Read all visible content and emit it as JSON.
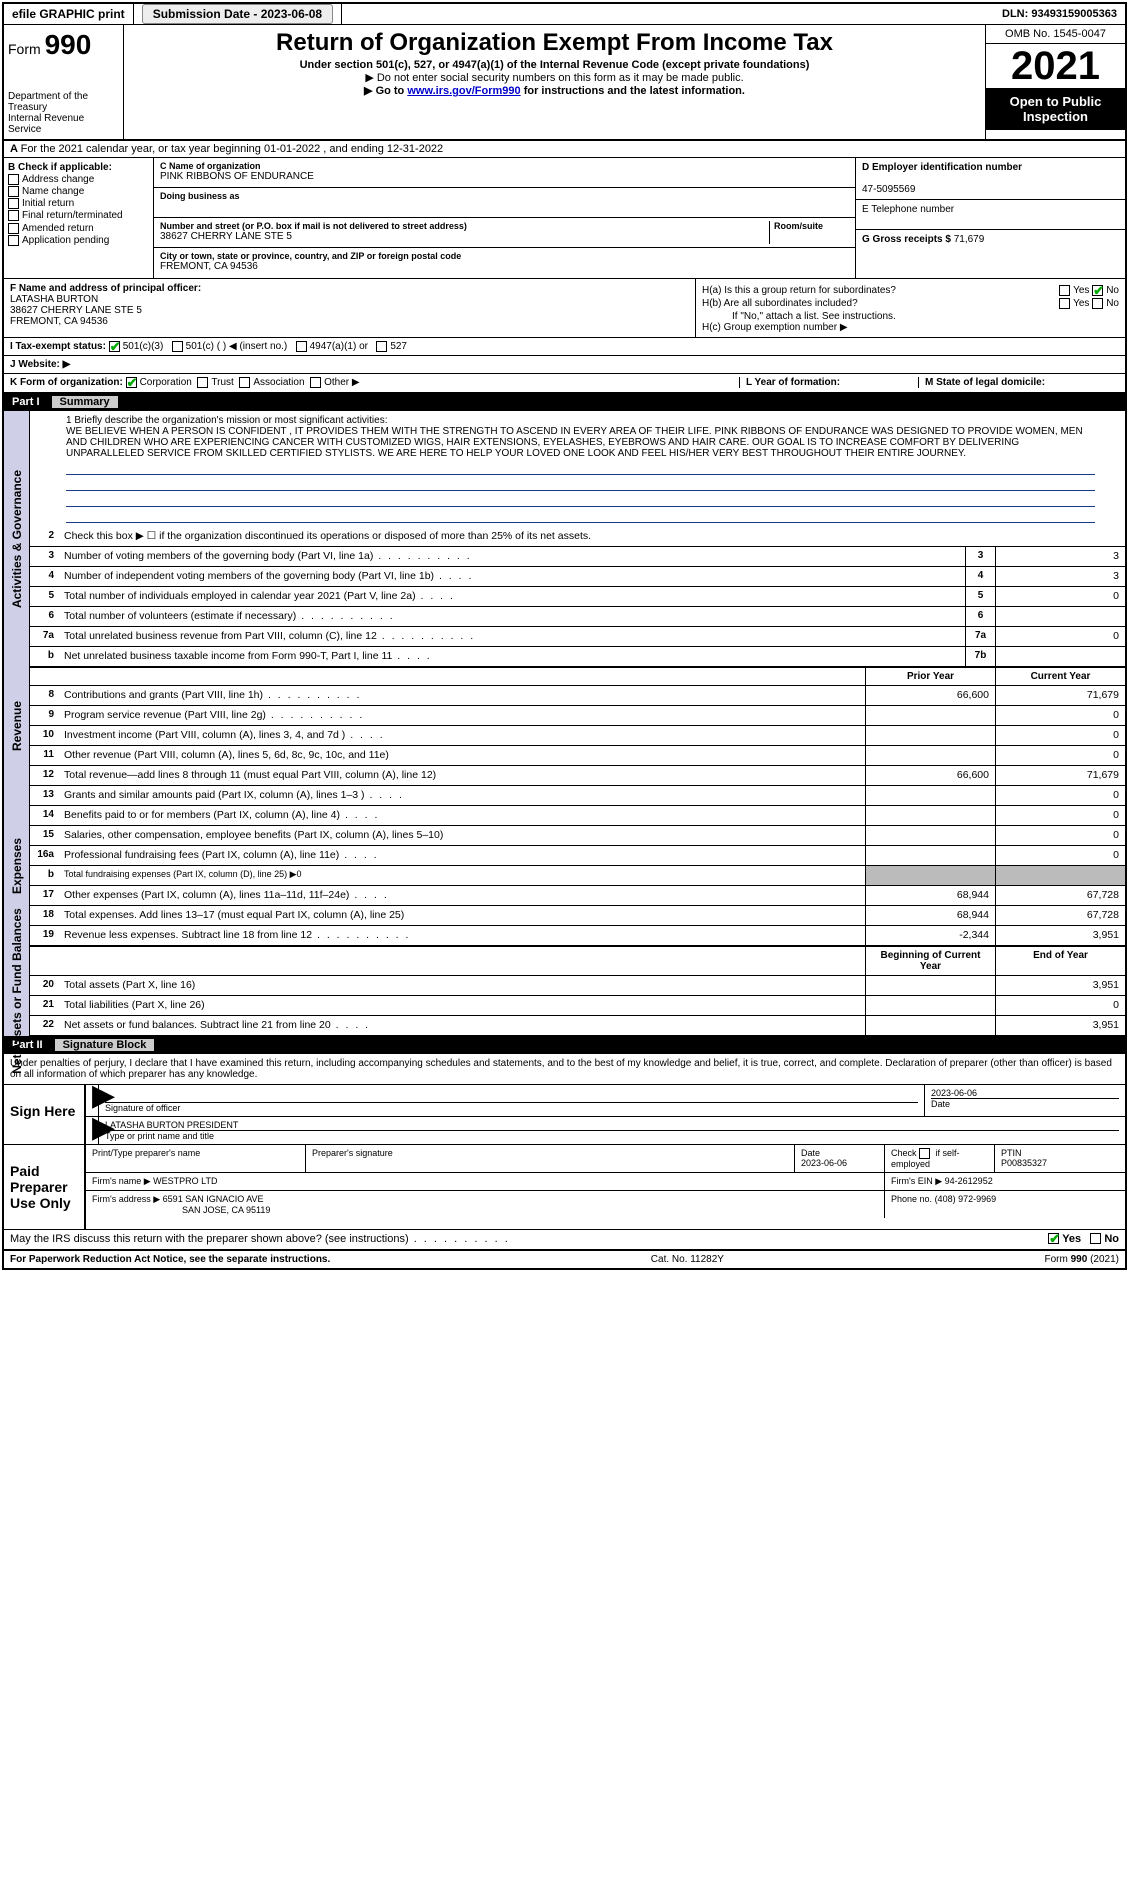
{
  "topbar": {
    "efile": "efile GRAPHIC print",
    "submission_label": "Submission Date - 2023-06-08",
    "dln": "DLN: 93493159005363"
  },
  "header": {
    "form_prefix": "Form",
    "form_number": "990",
    "dept": "Department of the Treasury",
    "irs": "Internal Revenue Service",
    "title": "Return of Organization Exempt From Income Tax",
    "subtitle": "Under section 501(c), 527, or 4947(a)(1) of the Internal Revenue Code (except private foundations)",
    "note1": "▶ Do not enter social security numbers on this form as it may be made public.",
    "note2_pre": "▶ Go to ",
    "note2_link": "www.irs.gov/Form990",
    "note2_post": " for instructions and the latest information.",
    "omb": "OMB No. 1545-0047",
    "year": "2021",
    "open": "Open to Public Inspection"
  },
  "row_a": "For the 2021 calendar year, or tax year beginning 01-01-2022   , and ending 12-31-2022",
  "col_b": {
    "title": "B Check if applicable:",
    "opts": [
      "Address change",
      "Name change",
      "Initial return",
      "Final return/terminated",
      "Amended return",
      "Application pending"
    ]
  },
  "col_c": {
    "name_lbl": "C Name of organization",
    "name": "PINK RIBBONS OF ENDURANCE",
    "dba_lbl": "Doing business as",
    "addr_lbl": "Number and street (or P.O. box if mail is not delivered to street address)",
    "room_lbl": "Room/suite",
    "addr": "38627 CHERRY LANE STE 5",
    "city_lbl": "City or town, state or province, country, and ZIP or foreign postal code",
    "city": "FREMONT, CA  94536"
  },
  "col_de": {
    "d_lbl": "D Employer identification number",
    "d_val": "47-5095569",
    "e_lbl": "E Telephone number",
    "g_lbl": "G Gross receipts $",
    "g_val": "71,679"
  },
  "col_f": {
    "lbl": "F  Name and address of principal officer:",
    "name": "LATASHA BURTON",
    "addr1": "38627 CHERRY LANE STE 5",
    "addr2": "FREMONT, CA  94536"
  },
  "col_h": {
    "ha": "H(a)  Is this a group return for subordinates?",
    "hb": "H(b)  Are all subordinates included?",
    "hb_note": "If \"No,\" attach a list. See instructions.",
    "hc": "H(c)  Group exemption number ▶",
    "yes": "Yes",
    "no": "No"
  },
  "row_i": {
    "lbl": "I    Tax-exempt status:",
    "o1": "501(c)(3)",
    "o2": "501(c) (  ) ◀ (insert no.)",
    "o3": "4947(a)(1) or",
    "o4": "527"
  },
  "row_j": {
    "lbl": "J   Website: ▶"
  },
  "row_k": {
    "lbl": "K Form of organization:",
    "o1": "Corporation",
    "o2": "Trust",
    "o3": "Association",
    "o4": "Other ▶",
    "l": "L Year of formation:",
    "m": "M State of legal domicile:"
  },
  "part1": {
    "num": "Part I",
    "title": "Summary"
  },
  "mission": {
    "lbl": "1   Briefly describe the organization's mission or most significant activities:",
    "text": "WE BELIEVE WHEN A PERSON IS CONFIDENT , IT PROVIDES THEM WITH THE STRENGTH TO ASCEND IN EVERY AREA OF THEIR LIFE. PINK RIBBONS OF ENDURANCE WAS DESIGNED TO PROVIDE WOMEN, MEN AND CHILDREN WHO ARE EXPERIENCING CANCER WITH CUSTOMIZED WIGS, HAIR EXTENSIONS, EYELASHES, EYEBROWS AND HAIR CARE. OUR GOAL IS TO INCREASE COMFORT BY DELIVERING UNPARALLELED SERVICE FROM SKILLED CERTIFIED STYLISTS. WE ARE HERE TO HELP YOUR LOVED ONE LOOK AND FEEL HIS/HER VERY BEST THROUGHOUT THEIR ENTIRE JOURNEY."
  },
  "side": {
    "gov": "Activities & Governance",
    "rev": "Revenue",
    "exp": "Expenses",
    "net": "Net Assets or Fund Balances"
  },
  "lines_gov": [
    {
      "n": "2",
      "d": "Check this box ▶ ☐ if the organization discontinued its operations or disposed of more than 25% of its net assets."
    },
    {
      "n": "3",
      "d": "Number of voting members of the governing body (Part VI, line 1a)",
      "dots": "s",
      "b": "3",
      "v": "3"
    },
    {
      "n": "4",
      "d": "Number of independent voting members of the governing body (Part VI, line 1b)",
      "dots": "xs",
      "b": "4",
      "v": "3"
    },
    {
      "n": "5",
      "d": "Total number of individuals employed in calendar year 2021 (Part V, line 2a)",
      "dots": "xs",
      "b": "5",
      "v": "0"
    },
    {
      "n": "6",
      "d": "Total number of volunteers (estimate if necessary)",
      "dots": "s",
      "b": "6",
      "v": ""
    },
    {
      "n": "7a",
      "d": "Total unrelated business revenue from Part VIII, column (C), line 12",
      "dots": "s",
      "b": "7a",
      "v": "0"
    },
    {
      "n": "b",
      "d": "Net unrelated business taxable income from Form 990-T, Part I, line 11",
      "dots": "xs",
      "b": "7b",
      "v": ""
    }
  ],
  "cols": {
    "prior": "Prior Year",
    "current": "Current Year"
  },
  "lines_rev": [
    {
      "n": "8",
      "d": "Contributions and grants (Part VIII, line 1h)",
      "dots": "s",
      "p": "66,600",
      "c": "71,679"
    },
    {
      "n": "9",
      "d": "Program service revenue (Part VIII, line 2g)",
      "dots": "s",
      "p": "",
      "c": "0"
    },
    {
      "n": "10",
      "d": "Investment income (Part VIII, column (A), lines 3, 4, and 7d )",
      "dots": "xs",
      "p": "",
      "c": "0"
    },
    {
      "n": "11",
      "d": "Other revenue (Part VIII, column (A), lines 5, 6d, 8c, 9c, 10c, and 11e)",
      "p": "",
      "c": "0"
    },
    {
      "n": "12",
      "d": "Total revenue—add lines 8 through 11 (must equal Part VIII, column (A), line 12)",
      "p": "66,600",
      "c": "71,679"
    }
  ],
  "lines_exp": [
    {
      "n": "13",
      "d": "Grants and similar amounts paid (Part IX, column (A), lines 1–3 )",
      "dots": "xs",
      "p": "",
      "c": "0"
    },
    {
      "n": "14",
      "d": "Benefits paid to or for members (Part IX, column (A), line 4)",
      "dots": "xs",
      "p": "",
      "c": "0"
    },
    {
      "n": "15",
      "d": "Salaries, other compensation, employee benefits (Part IX, column (A), lines 5–10)",
      "p": "",
      "c": "0"
    },
    {
      "n": "16a",
      "d": "Professional fundraising fees (Part IX, column (A), line 11e)",
      "dots": "xs",
      "p": "",
      "c": "0"
    },
    {
      "n": "b",
      "d": "Total fundraising expenses (Part IX, column (D), line 25) ▶0",
      "small": true,
      "shade": true
    },
    {
      "n": "17",
      "d": "Other expenses (Part IX, column (A), lines 11a–11d, 11f–24e)",
      "dots": "xs",
      "p": "68,944",
      "c": "67,728"
    },
    {
      "n": "18",
      "d": "Total expenses. Add lines 13–17 (must equal Part IX, column (A), line 25)",
      "p": "68,944",
      "c": "67,728"
    },
    {
      "n": "19",
      "d": "Revenue less expenses. Subtract line 18 from line 12",
      "dots": "s",
      "p": "-2,344",
      "c": "3,951"
    }
  ],
  "cols2": {
    "begin": "Beginning of Current Year",
    "end": "End of Year"
  },
  "lines_net": [
    {
      "n": "20",
      "d": "Total assets (Part X, line 16)",
      "dots": "",
      "p": "",
      "c": "3,951"
    },
    {
      "n": "21",
      "d": "Total liabilities (Part X, line 26)",
      "dots": "",
      "p": "",
      "c": "0"
    },
    {
      "n": "22",
      "d": "Net assets or fund balances. Subtract line 21 from line 20",
      "dots": "xs",
      "p": "",
      "c": "3,951"
    }
  ],
  "part2": {
    "num": "Part II",
    "title": "Signature Block"
  },
  "sig_intro": "Under penalties of perjury, I declare that I have examined this return, including accompanying schedules and statements, and to the best of my knowledge and belief, it is true, correct, and complete. Declaration of preparer (other than officer) is based on all information of which preparer has any knowledge.",
  "sign_here": {
    "title": "Sign Here",
    "sig_lbl": "Signature of officer",
    "date_lbl": "Date",
    "date": "2023-06-06",
    "name": "LATASHA BURTON  PRESIDENT",
    "name_lbl": "Type or print name and title"
  },
  "paid": {
    "title": "Paid Preparer Use Only",
    "h1": "Print/Type preparer's name",
    "h2": "Preparer's signature",
    "h3": "Date",
    "date": "2023-06-06",
    "h4_pre": "Check",
    "h4_post": "if self-employed",
    "h5": "PTIN",
    "ptin": "P00835327",
    "firm_name_lbl": "Firm's name    ▶",
    "firm_name": "WESTPRO LTD",
    "firm_ein_lbl": "Firm's EIN ▶",
    "firm_ein": "94-2612952",
    "firm_addr_lbl": "Firm's address ▶",
    "firm_addr1": "6591 SAN IGNACIO AVE",
    "firm_addr2": "SAN JOSE, CA  95119",
    "phone_lbl": "Phone no.",
    "phone": "(408) 972-9969"
  },
  "discuss": {
    "q": "May the IRS discuss this return with the preparer shown above? (see instructions)",
    "yes": "Yes",
    "no": "No"
  },
  "footer": {
    "left": "For Paperwork Reduction Act Notice, see the separate instructions.",
    "mid": "Cat. No. 11282Y",
    "right": "Form 990 (2021)"
  }
}
